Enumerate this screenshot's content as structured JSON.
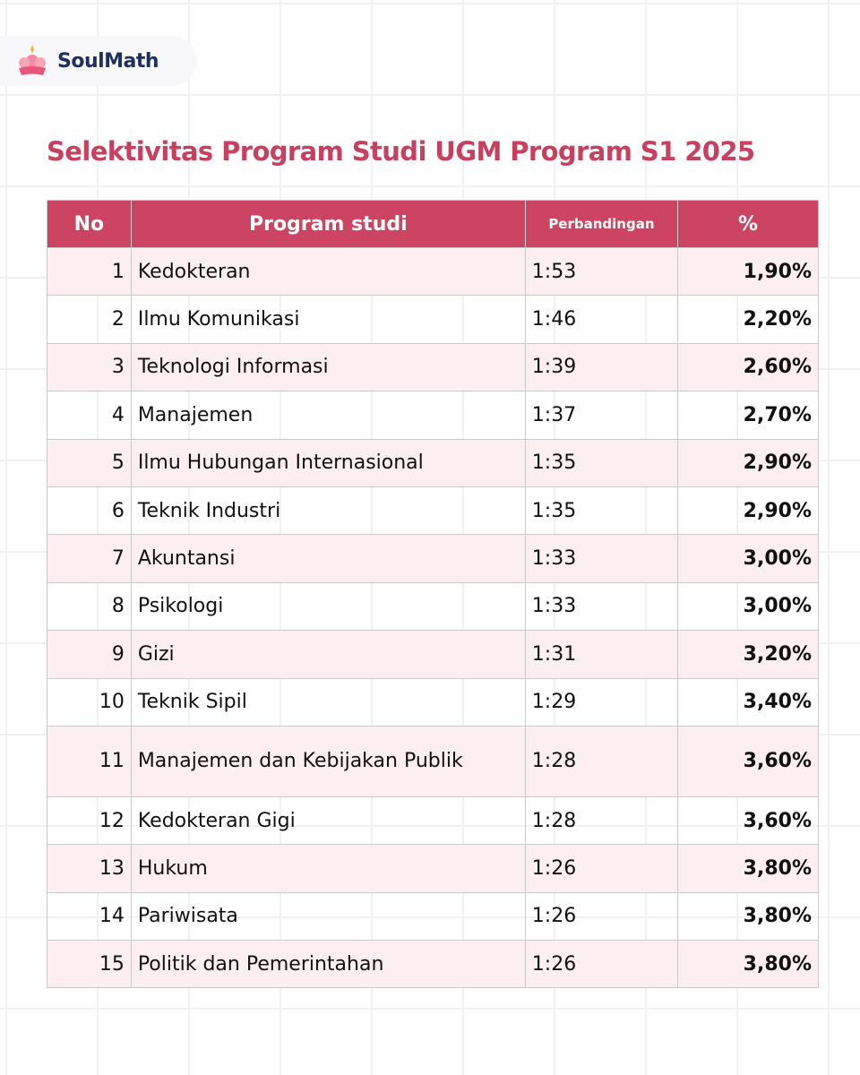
{
  "logo": {
    "text": "SoulMath"
  },
  "header": {
    "title": "Selektivitas Program Studi UGM Program S1 2025"
  },
  "table": {
    "columns": [
      "No",
      "Program studi",
      "Perbandingan",
      "%"
    ],
    "rows": [
      [
        "1",
        "Kedokteran",
        "1:53",
        "1,90%"
      ],
      [
        "2",
        "Ilmu Komunikasi",
        "1:46",
        "2,20%"
      ],
      [
        "3",
        "Teknologi Informasi",
        "1:39",
        "2,60%"
      ],
      [
        "4",
        "Manajemen",
        "1:37",
        "2,70%"
      ],
      [
        "5",
        "Ilmu Hubungan Internasional",
        "1:35",
        "2,90%"
      ],
      [
        "6",
        "Teknik Industri",
        "1:35",
        "2,90%"
      ],
      [
        "7",
        "Akuntansi",
        "1:33",
        "3,00%"
      ],
      [
        "8",
        "Psikologi",
        "1:33",
        "3,00%"
      ],
      [
        "9",
        "Gizi",
        "1:31",
        "3,20%"
      ],
      [
        "10",
        "Teknik Sipil",
        "1:29",
        "3,40%"
      ],
      [
        "11",
        "Manajemen dan Kebijakan Publik",
        "1:28",
        "3,60%"
      ],
      [
        "12",
        "Kedokteran Gigi",
        "1:28",
        "3,60%"
      ],
      [
        "13",
        "Hukum",
        "1:26",
        "3,80%"
      ],
      [
        "14",
        "Pariwisata",
        "1:26",
        "3,80%"
      ],
      [
        "15",
        "Politik dan Pemerintahan",
        "1:26",
        "3,80%"
      ]
    ]
  }
}
